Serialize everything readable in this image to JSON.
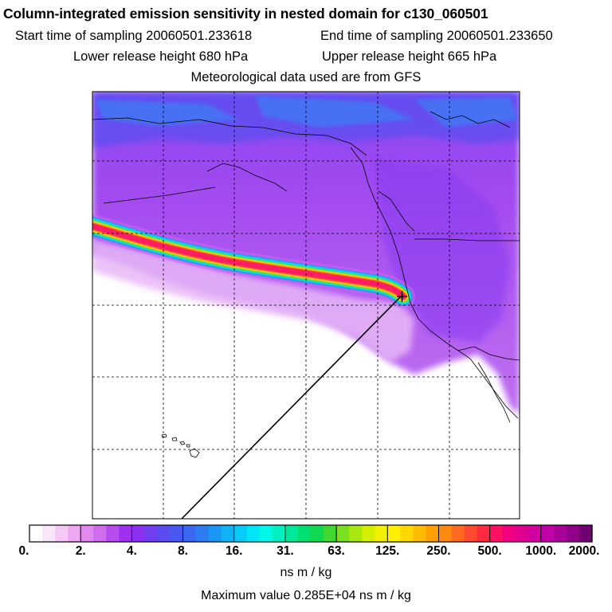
{
  "header": {
    "title": "Column-integrated emission sensitivity in nested domain for c130_060501",
    "start_label": "Start time of sampling 20060501.233618",
    "end_label": "End time of sampling 20060501.233650",
    "lower_label": "Lower release height  680 hPa",
    "upper_label": "Upper release height  665 hPa",
    "met_label": "Meteorological data used are from GFS"
  },
  "colorbar": {
    "ticks": [
      "0.",
      "2.",
      "4.",
      "8.",
      "16.",
      "31.",
      "63.",
      "125.",
      "250.",
      "500.",
      "1000.",
      "2000."
    ],
    "colors": [
      "#ffffff",
      "#fae6fa",
      "#f5c8f5",
      "#eea8f2",
      "#e08af0",
      "#d06cee",
      "#b84cef",
      "#a030f0",
      "#8a30f0",
      "#7040f0",
      "#5a4cf0",
      "#4858f0",
      "#3a68f0",
      "#2c7cf2",
      "#1c96f4",
      "#10b2f6",
      "#08ccf8",
      "#00e6f8",
      "#00f8e8",
      "#00f0c0",
      "#00e89a",
      "#00e070",
      "#10d850",
      "#40d830",
      "#78e020",
      "#a8e810",
      "#d4f000",
      "#f2f000",
      "#fff000",
      "#ffd800",
      "#ffbc00",
      "#ffa000",
      "#ff8a10",
      "#ff6a20",
      "#ff4a30",
      "#ff2a40",
      "#ff1060",
      "#f00080",
      "#e00090",
      "#d000a0",
      "#c000a8",
      "#a80098",
      "#900088",
      "#700070"
    ],
    "units": "ns m / kg",
    "max_value_text": "Maximum value  0.285E+04 ns m / kg"
  },
  "colors": {
    "plume_core": "#ff1e64",
    "plume_edge": "#ffd000",
    "background_sensitivity": "#a040f0",
    "ocean_clean": "#ffffff"
  },
  "icons": {
    "release_point": "release-point-cross-icon"
  }
}
